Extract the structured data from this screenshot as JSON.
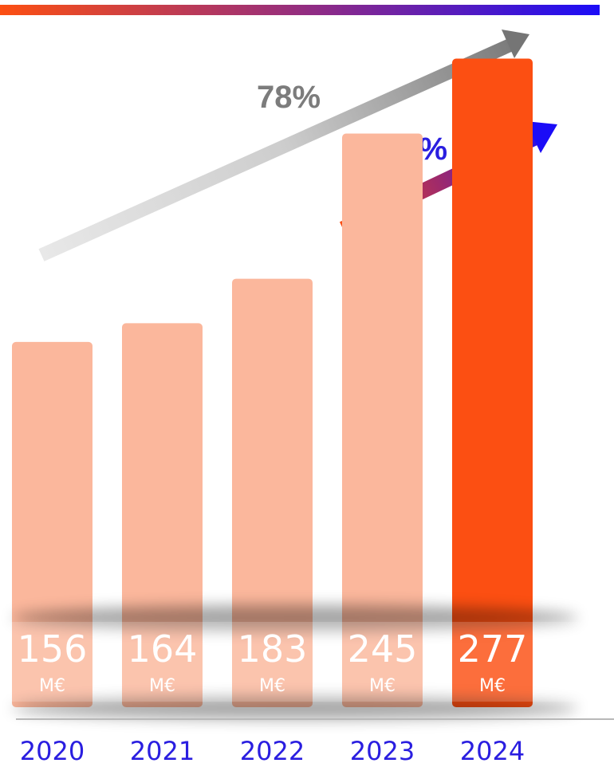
{
  "chart_data": {
    "type": "bar",
    "categories": [
      "2020",
      "2021",
      "2022",
      "2023",
      "2024"
    ],
    "values": [
      156,
      164,
      183,
      245,
      277
    ],
    "value_labels": [
      "156",
      "164",
      "183",
      "245",
      "277"
    ],
    "unit": "M€",
    "ylim": [
      0,
      300
    ],
    "grid": false,
    "highlight_index": 4,
    "annotations": [
      {
        "label": "78%",
        "from": "2020",
        "to": "2024",
        "style": "gray-gradient-arrow"
      },
      {
        "label": "13%",
        "from": "2023",
        "to": "2024",
        "style": "orange-blue-gradient-arrow"
      }
    ]
  },
  "colors": {
    "bar": "#fbb79c",
    "bar_highlight": "#fc4f12",
    "year_label": "#2a1ee0",
    "top_bar_start": "#fc4f12",
    "top_bar_end": "#1b0cf7",
    "arrow_gray_start": "#e6e6e6",
    "arrow_gray_end": "#7a7a7a",
    "label_78": "#7c7c7c",
    "label_13": "#2a1ee0"
  }
}
